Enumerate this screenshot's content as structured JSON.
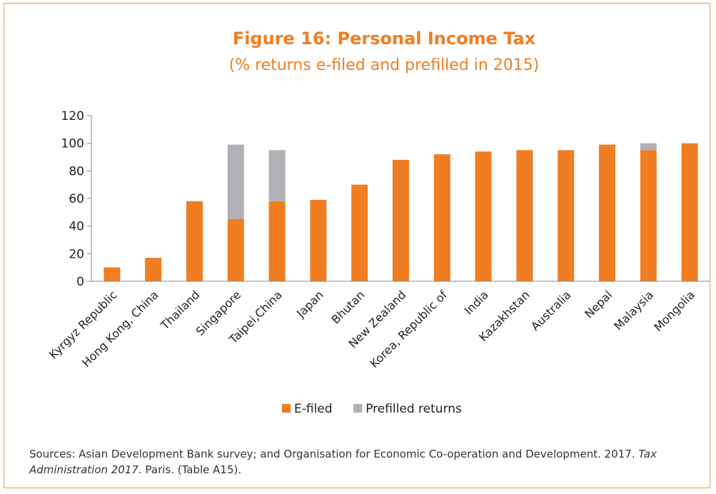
{
  "chart_data": {
    "type": "bar",
    "stacked": true,
    "title": "Figure 16: Personal Income Tax",
    "subtitle": "(% returns e-filed and prefilled in 2015)",
    "xlabel": "",
    "ylabel": "",
    "ylim": [
      0,
      120
    ],
    "yticks": [
      0,
      20,
      40,
      60,
      80,
      100,
      120
    ],
    "grid": false,
    "legend_position": "bottom",
    "categories": [
      "Kyrgyz Republic",
      "Hong Kong, China",
      "Thailand",
      "Singapore",
      "Taipei,China",
      "Japan",
      "Bhutan",
      "New Zealand",
      "Korea, Republic of",
      "India",
      "Kazakhstan",
      "Australia",
      "Nepal",
      "Malaysia",
      "Mongolia"
    ],
    "series": [
      {
        "name": "E-filed",
        "color": "#f07d22",
        "values": [
          10,
          17,
          58,
          45,
          58,
          59,
          70,
          88,
          92,
          94,
          95,
          95,
          99,
          95,
          100
        ]
      },
      {
        "name": "Prefilled returns",
        "color": "#b1b1b5",
        "values": [
          0,
          0,
          0,
          54,
          37,
          0,
          0,
          0,
          0,
          0,
          0,
          0,
          0,
          5,
          0
        ]
      }
    ]
  },
  "source": {
    "prefix": "Sources: Asian Development Bank survey; and Organisation for Economic Co-operation and Development. 2017. ",
    "italic": "Tax Administration 2017",
    "suffix": ". Paris. (Table A15)."
  }
}
